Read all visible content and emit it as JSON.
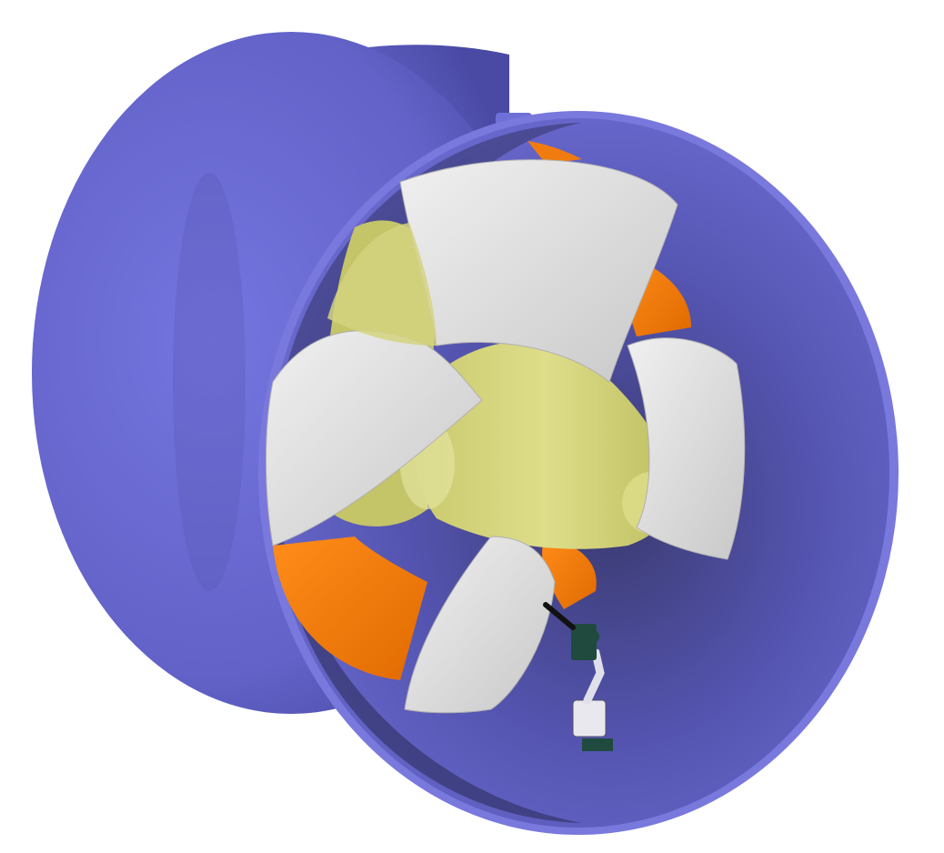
{
  "scene": {
    "subject": "ducted-propeller-with-robot-arm",
    "colors": {
      "background": "#ffffff",
      "duct": "#6a6acc",
      "duct_dark": "#2a2a55",
      "duct_rim": "#7878dd",
      "hub": "#d2d27a",
      "hub_dark": "#b8b85a",
      "blade": "#e6e6e6",
      "blade_shadow": "#bdbdbd",
      "inner_orange": "#f07c10",
      "robot": "#1f4a3d"
    },
    "blade_count": 5
  }
}
